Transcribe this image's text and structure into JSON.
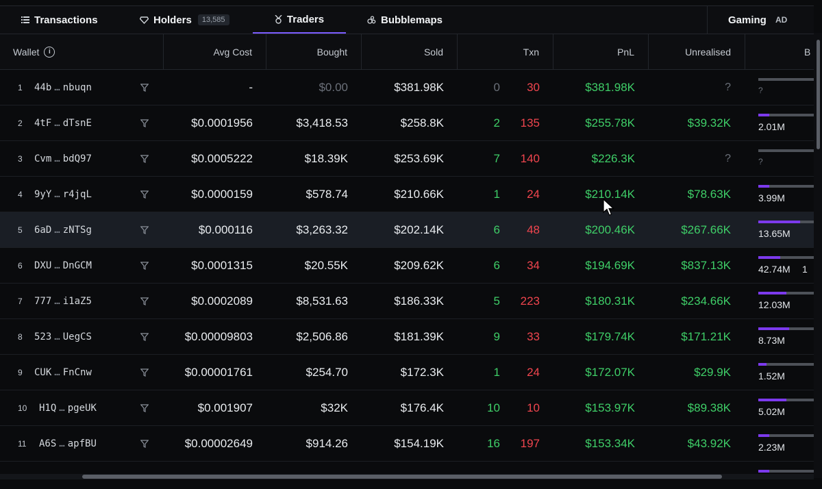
{
  "tabs": [
    {
      "label": "Transactions",
      "icon": "list-icon"
    },
    {
      "label": "Holders",
      "icon": "diamond-icon",
      "count": "13,585"
    },
    {
      "label": "Traders",
      "icon": "medal-icon"
    },
    {
      "label": "Bubblemaps",
      "icon": "bubbles-icon"
    }
  ],
  "gaming": {
    "label": "Gaming",
    "ad": "AD"
  },
  "columns": {
    "wallet": "Wallet",
    "avg_cost": "Avg Cost",
    "bought": "Bought",
    "sold": "Sold",
    "txn": "Txn",
    "pnl": "PnL",
    "unrealised": "Unrealised",
    "balance": "B"
  },
  "rows": [
    {
      "rank": "1",
      "wallet_start": "44b",
      "wallet_end": "nbuqn",
      "avg_cost": "-",
      "bought": "$0.00",
      "sold": "$381.98K",
      "buys": "0",
      "sells": "30",
      "pnl": "$381.98K",
      "unrealised": "?",
      "balance": "?",
      "fill": 0
    },
    {
      "rank": "2",
      "wallet_start": "4tF",
      "wallet_end": "dTsnE",
      "avg_cost": "$0.0001956",
      "bought": "$3,418.53",
      "sold": "$258.8K",
      "buys": "2",
      "sells": "135",
      "pnl": "$255.78K",
      "unrealised": "$39.32K",
      "balance": "2.01M",
      "fill": 0.2
    },
    {
      "rank": "3",
      "wallet_start": "Cvm",
      "wallet_end": "bdQ97",
      "avg_cost": "$0.0005222",
      "bought": "$18.39K",
      "sold": "$253.69K",
      "buys": "7",
      "sells": "140",
      "pnl": "$226.3K",
      "unrealised": "?",
      "balance": "?",
      "fill": 0
    },
    {
      "rank": "4",
      "wallet_start": "9yY",
      "wallet_end": "r4jqL",
      "avg_cost": "$0.0000159",
      "bought": "$578.74",
      "sold": "$210.66K",
      "buys": "1",
      "sells": "24",
      "pnl": "$210.14K",
      "unrealised": "$78.63K",
      "balance": "3.99M",
      "fill": 0.2
    },
    {
      "rank": "5",
      "wallet_start": "6aD",
      "wallet_end": "zNTSg",
      "avg_cost": "$0.000116",
      "bought": "$3,263.32",
      "sold": "$202.14K",
      "buys": "6",
      "sells": "48",
      "pnl": "$200.46K",
      "unrealised": "$267.66K",
      "balance": "13.65M",
      "fill": 0.75
    },
    {
      "rank": "6",
      "wallet_start": "DXU",
      "wallet_end": "DnGCM",
      "avg_cost": "$0.0001315",
      "bought": "$20.55K",
      "sold": "$209.62K",
      "buys": "6",
      "sells": "34",
      "pnl": "$194.69K",
      "unrealised": "$837.13K",
      "balance": "42.74M",
      "balance_extra": "1",
      "fill": 0.4
    },
    {
      "rank": "7",
      "wallet_start": "777",
      "wallet_end": "i1aZ5",
      "avg_cost": "$0.0002089",
      "bought": "$8,531.63",
      "sold": "$186.33K",
      "buys": "5",
      "sells": "223",
      "pnl": "$180.31K",
      "unrealised": "$234.66K",
      "balance": "12.03M",
      "fill": 0.5
    },
    {
      "rank": "8",
      "wallet_start": "523",
      "wallet_end": "UegCS",
      "avg_cost": "$0.00009803",
      "bought": "$2,506.86",
      "sold": "$181.39K",
      "buys": "9",
      "sells": "33",
      "pnl": "$179.74K",
      "unrealised": "$171.21K",
      "balance": "8.73M",
      "fill": 0.55
    },
    {
      "rank": "9",
      "wallet_start": "CUK",
      "wallet_end": "FnCnw",
      "avg_cost": "$0.00001761",
      "bought": "$254.70",
      "sold": "$172.3K",
      "buys": "1",
      "sells": "24",
      "pnl": "$172.07K",
      "unrealised": "$29.9K",
      "balance": "1.52M",
      "fill": 0.15
    },
    {
      "rank": "10",
      "wallet_start": "H1Q",
      "wallet_end": "pgeUK",
      "avg_cost": "$0.001907",
      "bought": "$32K",
      "sold": "$176.4K",
      "buys": "10",
      "sells": "10",
      "pnl": "$153.97K",
      "unrealised": "$89.38K",
      "balance": "5.02M",
      "fill": 0.5
    },
    {
      "rank": "11",
      "wallet_start": "A6S",
      "wallet_end": "apfBU",
      "avg_cost": "$0.00002649",
      "bought": "$914.26",
      "sold": "$154.19K",
      "buys": "16",
      "sells": "197",
      "pnl": "$153.34K",
      "unrealised": "$43.92K",
      "balance": "2.23M",
      "fill": 0.2
    },
    {
      "rank": "",
      "wallet_start": "",
      "wallet_end": "",
      "avg_cost": "",
      "bought": "",
      "sold": "",
      "buys": "",
      "sells": "",
      "pnl": "",
      "unrealised": "",
      "balance": "",
      "fill": 0.2
    }
  ],
  "highlight_row": 4,
  "colors": {
    "accent": "#7b5cff",
    "green": "#3fcf68",
    "red": "#f0454e",
    "bar_fill": "#7c3aed"
  }
}
